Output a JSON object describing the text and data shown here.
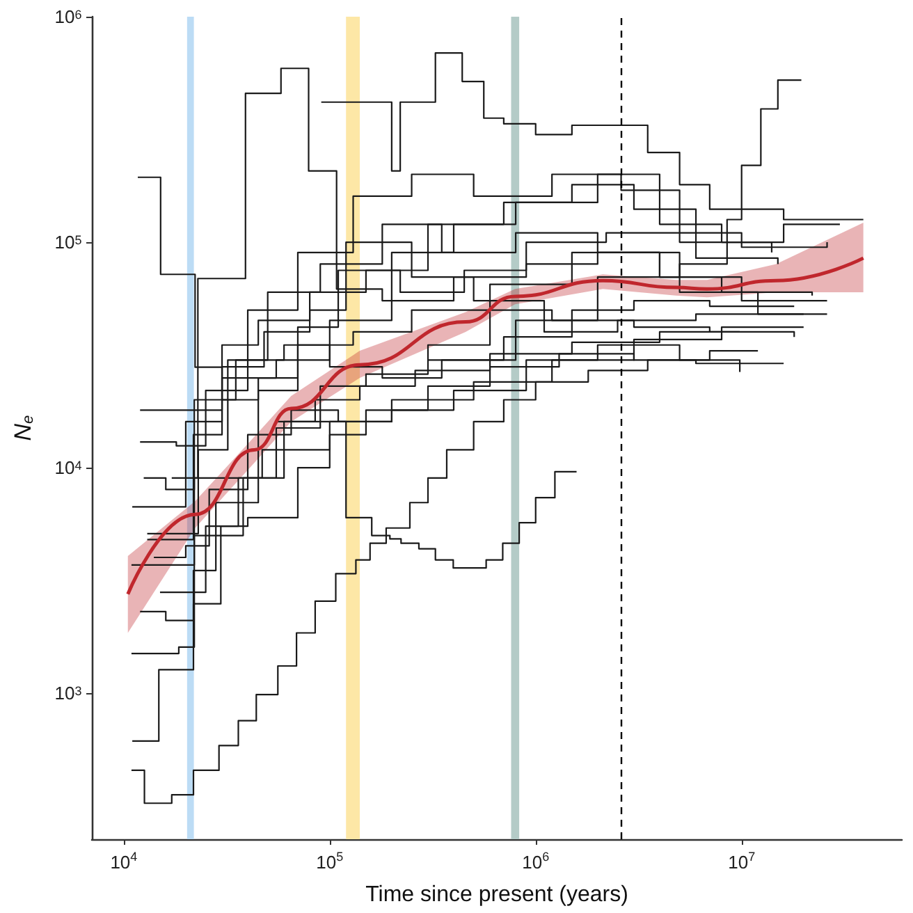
{
  "chart_data": {
    "type": "line",
    "xlabel": "Time since present (years)",
    "ylabel": "N$_{e}$",
    "log": "xy",
    "grid": false,
    "marker": "none",
    "line_style": "solid",
    "xlim": [
      7000,
      60000000
    ],
    "xticks": [
      {
        "value": 10000,
        "label": "10$^{4}$"
      },
      {
        "value": 100000,
        "label": "10$^{5}$"
      },
      {
        "value": 1000000,
        "label": "10$^{6}$"
      },
      {
        "value": 10000000,
        "label": "10$^{7}$"
      }
    ],
    "ylim": [
      225,
      1000000
    ],
    "yticks": [
      {
        "value": 1000,
        "label": "10$^{3}$"
      },
      {
        "value": 10000,
        "label": "10$^{4}$"
      },
      {
        "value": 100000,
        "label": "10$^{5}$"
      },
      {
        "value": 1000000,
        "label": "10$^{6}$"
      }
    ],
    "bands": [
      {
        "axis": "x",
        "from": 20300,
        "to": 21900,
        "color": "#bcdcf5"
      },
      {
        "axis": "x",
        "from": 120000,
        "to": 140000,
        "color": "#fde7a6"
      },
      {
        "axis": "x",
        "from": 760000,
        "to": 832000,
        "color": "#b4cbc7"
      }
    ],
    "ref_lines": [
      {
        "axis": "x",
        "value": 2600000,
        "color": "#000000",
        "line_style": "dashed"
      }
    ],
    "series": [
      {
        "type": "step",
        "color": "#1a1a1a",
        "x": [
          10900,
          12600,
          17100,
          21800,
          29000,
          36000,
          44000,
          56000,
          69000,
          85000,
          107000,
          134000,
          157000,
          188000,
          245000,
          300000,
          370000,
          500000,
          700000,
          1000000,
          1800000,
          3500000,
          7000000,
          12000000
        ],
        "values": [
          455,
          325,
          354,
          455,
          586,
          755,
          986,
          1320,
          1850,
          2560,
          3390,
          3900,
          4620,
          5400,
          7000,
          9000,
          12000,
          16000,
          20000,
          24000,
          27000,
          30000,
          33000,
          33000
        ]
      },
      {
        "type": "step",
        "color": "#1a1a1a",
        "x": [
          11000,
          14800,
          21800,
          29600,
          36000,
          47000,
          60000,
          85000,
          140000,
          260000,
          600000,
          1500000,
          4000000,
          9800000
        ],
        "values": [
          613,
          1270,
          2490,
          5500,
          9000,
          12000,
          16000,
          20000,
          23000,
          27000,
          32000,
          36000,
          40000,
          40000
        ]
      },
      {
        "type": "step",
        "color": "#1a1a1a",
        "x": [
          17100,
          22900,
          39000,
          58000,
          79000,
          108000,
          180000,
          400000,
          900000,
          2000000,
          5000000,
          12000000,
          20000000
        ],
        "values": [
          9000,
          69000,
          457000,
          590000,
          207000,
          62000,
          55000,
          70000,
          80000,
          90000,
          60000,
          48000,
          48000
        ]
      },
      {
        "type": "step",
        "color": "#1a1a1a",
        "x": [
          91000,
          200000,
          220000,
          326000,
          440000,
          560000,
          700000,
          1000000,
          1500000,
          2600000,
          3500000,
          5000000,
          7000000,
          16000000,
          39000000
        ],
        "values": [
          418000,
          207000,
          418000,
          690000,
          516000,
          355000,
          335000,
          300000,
          330000,
          330000,
          250000,
          180000,
          140000,
          126000,
          126000
        ]
      },
      {
        "type": "step",
        "color": "#1a1a1a",
        "x": [
          300000,
          800000,
          2000000,
          5000000,
          8500000,
          10000000,
          12400000,
          15000000,
          19500000
        ],
        "values": [
          30000,
          45000,
          70000,
          80000,
          126000,
          219000,
          390000,
          523000,
          523000
        ]
      },
      {
        "type": "step",
        "color": "#1a1a1a",
        "x": [
          56000,
          120000,
          160000,
          196000,
          222000,
          271000,
          326000,
          398000,
          575000,
          692000,
          832000,
          1000000,
          1240000,
          1580000
        ],
        "values": [
          16000,
          6000,
          5000,
          4830,
          4620,
          4370,
          3900,
          3590,
          3900,
          4620,
          5700,
          7360,
          9590,
          9590
        ]
      },
      {
        "type": "step",
        "color": "#1a1a1a",
        "x": [
          11700,
          15100,
          22200,
          30000,
          45000,
          70000,
          130000,
          250000,
          600000,
          1500000,
          4000000,
          10000000,
          26000000
        ],
        "values": [
          194000,
          72000,
          27900,
          20000,
          25000,
          35000,
          40000,
          50000,
          65000,
          90000,
          70000,
          55000,
          55000
        ]
      },
      {
        "type": "step",
        "color": "#1a1a1a",
        "x": [
          12000,
          19000,
          30000,
          55000,
          100000,
          200000,
          400000,
          800000,
          2000000,
          4000000,
          8000000,
          16000000,
          30000000
        ],
        "values": [
          18000,
          18000,
          25000,
          30000,
          45000,
          90000,
          120000,
          150000,
          200000,
          120000,
          100000,
          120000,
          120000
        ]
      },
      {
        "type": "step",
        "color": "#1a1a1a",
        "x": [
          12000,
          18000,
          25000,
          40000,
          70000,
          130000,
          250000,
          500000,
          1200000,
          2600000,
          5000000,
          10000000,
          26000000
        ],
        "values": [
          13000,
          12500,
          22000,
          50000,
          90000,
          160000,
          200000,
          160000,
          200000,
          170000,
          110000,
          95000,
          100000
        ]
      },
      {
        "type": "step",
        "color": "#1a1a1a",
        "x": [
          13000,
          17000,
          23000,
          32000,
          50000,
          90000,
          180000,
          350000,
          800000,
          2000000,
          4000000,
          8000000,
          22000000
        ],
        "values": [
          5100,
          5100,
          12000,
          30000,
          60000,
          80000,
          120000,
          90000,
          110000,
          90000,
          70000,
          60000,
          58000
        ]
      },
      {
        "type": "step",
        "color": "#1a1a1a",
        "x": [
          10900,
          15000,
          22000,
          35000,
          55000,
          90000,
          150000,
          300000,
          600000,
          1200000,
          3000000,
          7000000,
          18000000
        ],
        "values": [
          3700,
          3700,
          9000,
          9000,
          15000,
          23000,
          26000,
          35000,
          50000,
          45000,
          42000,
          40000,
          38000
        ]
      },
      {
        "type": "step",
        "color": "#1a1a1a",
        "x": [
          11000,
          15000,
          20000,
          30000,
          48000,
          80000,
          120000,
          250000,
          500000,
          1100000,
          2500000,
          6000000,
          26000000
        ],
        "values": [
          6700,
          6700,
          16000,
          28000,
          40000,
          50000,
          100000,
          70000,
          55000,
          40000,
          45000,
          48000,
          48000
        ]
      },
      {
        "type": "step",
        "color": "#1a1a1a",
        "x": [
          12500,
          16000,
          22000,
          35000,
          60000,
          100000,
          180000,
          350000,
          700000,
          1500000,
          3000000,
          7000000,
          18000000
        ],
        "values": [
          9000,
          8000,
          20000,
          30000,
          35000,
          28000,
          25000,
          30000,
          38000,
          50000,
          55000,
          52000,
          52000
        ]
      },
      {
        "type": "step",
        "color": "#1a1a1a",
        "x": [
          14000,
          20000,
          26000,
          40000,
          65000,
          110000,
          200000,
          400000,
          900000,
          2000000,
          5000000,
          9800000
        ],
        "values": [
          4000,
          4500,
          8000,
          14000,
          18000,
          16000,
          18000,
          22000,
          30000,
          35000,
          30000,
          26600
        ]
      },
      {
        "type": "step",
        "color": "#1a1a1a",
        "x": [
          15000,
          20000,
          25000,
          40000,
          70000,
          100000,
          150000,
          300000,
          600000,
          1300000,
          3000000,
          6000000,
          16000000
        ],
        "values": [
          2800,
          2800,
          5500,
          6000,
          10000,
          14000,
          18000,
          23000,
          28000,
          32000,
          30000,
          29000,
          29000
        ]
      },
      {
        "type": "step",
        "color": "#1a1a1a",
        "x": [
          12000,
          16000,
          21800,
          28000,
          45000,
          70000,
          110000,
          220000,
          450000,
          900000,
          2200000,
          5000000,
          14000000
        ],
        "values": [
          2300,
          2100,
          3500,
          7000,
          22000,
          42000,
          75000,
          60000,
          75000,
          100000,
          110000,
          100000,
          90000
        ]
      },
      {
        "type": "step",
        "color": "#1a1a1a",
        "x": [
          13000,
          17500,
          21800,
          30000,
          45000,
          80000,
          150000,
          300000,
          700000,
          1500000,
          3000000,
          6000000,
          15000000
        ],
        "values": [
          4800,
          4800,
          14000,
          35000,
          45000,
          60000,
          75000,
          120000,
          150000,
          180000,
          140000,
          85000,
          80000
        ]
      },
      {
        "type": "step",
        "color": "#1a1a1a",
        "x": [
          10900,
          14000,
          18500,
          22000,
          30000,
          38000,
          60000,
          100000,
          200000,
          500000,
          1200000,
          3000000,
          8000000,
          20000000
        ],
        "values": [
          1500,
          1500,
          1600,
          5000,
          5000,
          9000,
          12000,
          16000,
          20000,
          24000,
          30000,
          37000,
          42000,
          42000
        ]
      },
      {
        "type": "line",
        "color": "#c0272d",
        "x": [
          10470,
          22200,
          43000,
          65000,
          140000,
          457000,
          794000,
          2120000,
          4800000,
          6800000,
          14700000,
          39000000
        ],
        "values": [
          2750,
          6200,
          12000,
          18300,
          28600,
          44300,
          57500,
          67600,
          63000,
          62000,
          67600,
          85000
        ],
        "lower": [
          1850,
          5400,
          10500,
          16000,
          25000,
          40000,
          53000,
          62000,
          58000,
          57000,
          60000,
          60000
        ],
        "upper": [
          4060,
          7100,
          13700,
          20800,
          33000,
          49000,
          62000,
          72000,
          68000,
          68000,
          80000,
          122000
        ]
      }
    ]
  }
}
